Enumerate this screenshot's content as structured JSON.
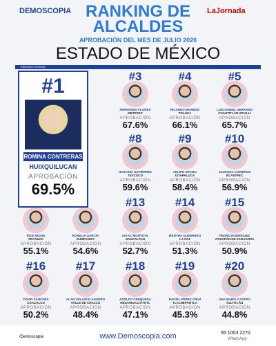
{
  "header": {
    "brand": "DEMOSCOPIA",
    "title": "RANKING DE ALCALDES",
    "subtitle": "APROBACIÓN DEL MES DE JULIO 2026",
    "partner": "LaJornada",
    "region": "ESTADO DE MÉXICO",
    "section": "RANKING ESTATAL"
  },
  "approval_label": "APROBACIÓN",
  "leader": {
    "rank": "#1",
    "name": "ROMINA CONTRERAS",
    "city": "HUIXQUILUCAN",
    "approval": "69.5%"
  },
  "mayors": [
    {
      "rank": "#3",
      "name": "FERNANDO FLORES",
      "city": "METEPEC",
      "approval": "67.6%",
      "col": 2,
      "row": 0
    },
    {
      "rank": "#4",
      "name": "RICARDO MORENO",
      "city": "TOLUCA",
      "approval": "66.1%",
      "col": 3,
      "row": 0
    },
    {
      "rank": "#5",
      "name": "LUIS DANIEL SERRANO",
      "city": "CUAUTITLÁN IZCALLI",
      "approval": "65.7%",
      "col": 4,
      "row": 0
    },
    {
      "rank": "#8",
      "name": "NAZARIO GUTIÉRREZ",
      "city": "TEXCOCO",
      "approval": "59.6%",
      "col": 2,
      "row": 1
    },
    {
      "rank": "#9",
      "name": "FELIPE ARVIZU",
      "city": "IXTAPALUCA",
      "approval": "58.4%",
      "col": 3,
      "row": 1
    },
    {
      "rank": "#10",
      "name": "AZUCENA CISNEROS",
      "city": "ECATEPEC",
      "approval": "56.9%",
      "col": 4,
      "row": 1
    },
    {
      "name": "ROSI WONG",
      "city": "TECÁMAC",
      "approval": "55.1%",
      "col": 0,
      "row": 2
    },
    {
      "name": "ROSELIA GARCÍA",
      "city": "ZUMPANGO",
      "approval": "54.6%",
      "col": 1,
      "row": 2
    },
    {
      "rank": "#13",
      "name": "ISAAC MONTOYA",
      "city": "NAUCALPAN",
      "approval": "52.7%",
      "col": 2,
      "row": 2
    },
    {
      "rank": "#14",
      "name": "MARTHA GUERRERO",
      "city": "LA PAZ",
      "approval": "51.3%",
      "col": 3,
      "row": 2
    },
    {
      "rank": "#15",
      "name": "PEDRO RODRÍGUEZ",
      "city": "ATIZAPÁN DE ZARAGOZA",
      "approval": "50.9%",
      "col": 4,
      "row": 2
    },
    {
      "rank": "#16",
      "name": "DAVID SÁNCHEZ",
      "city": "COACALCO",
      "approval": "50.2%",
      "col": 0,
      "row": 3
    },
    {
      "rank": "#17",
      "name": "ALAN VELASCO AGUERO",
      "city": "VALLE DE CHALCO",
      "approval": "48.4%",
      "col": 1,
      "row": 3
    },
    {
      "rank": "#18",
      "name": "ADOLFO CERQUEDA",
      "city": "NEZAHUALCÓYOTL",
      "approval": "47.1%",
      "col": 2,
      "row": 3
    },
    {
      "rank": "#19",
      "name": "RACIEL PÉREZ CRUZ",
      "city": "TLALNEPANTLA",
      "approval": "45.3%",
      "col": 3,
      "row": 3
    },
    {
      "rank": "#20",
      "name": "ANA MARÍA CASTRO",
      "city": "TULTITLÁN",
      "approval": "44.8%",
      "col": 4,
      "row": 3
    }
  ],
  "footer": {
    "social": "/Demoscopia",
    "site": "www.Demoscopia.com",
    "phone": "55 1003 2270",
    "whatsapp": "WhatsApp"
  }
}
